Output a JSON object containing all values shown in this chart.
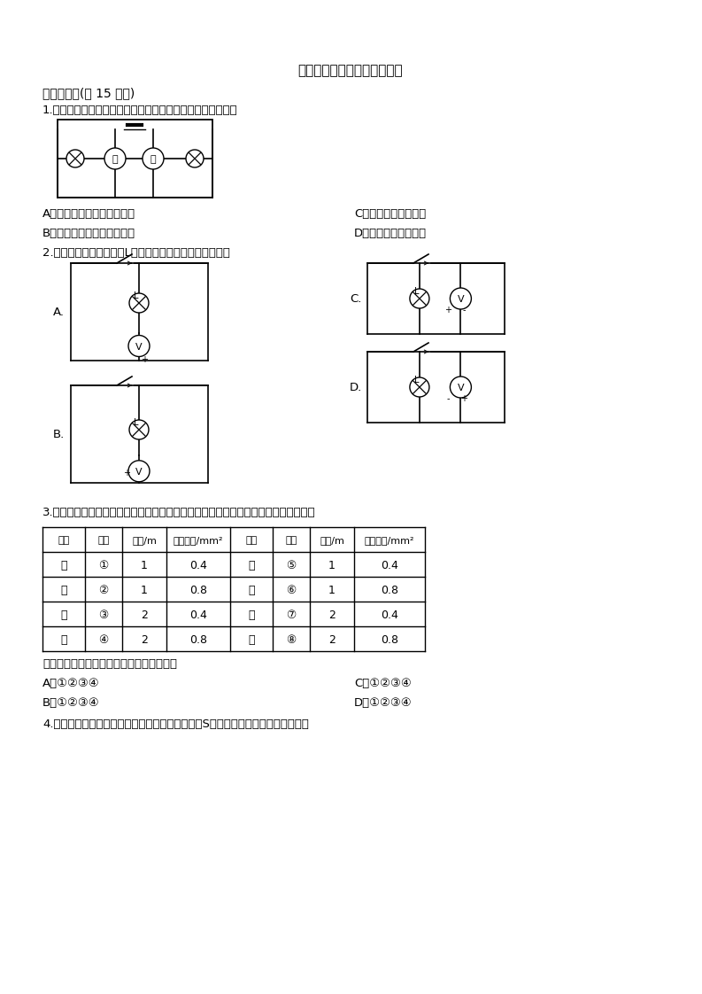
{
  "title": "第十六章《电压电阻》测试卷",
  "background_color": "#ffffff",
  "section1": "一、单选题(供 15 小题)",
  "q1": "1.图中各电路元件的连接均正确，甲、乙为两个电表，则（）",
  "q1_options_left": [
    "A．甲为电流表，乙为电压表",
    "B．甲为电压表，乙为电流表"
  ],
  "q1_options_right": [
    "C．甲、乙都为电流表",
    "D．甲、乙都为电压表"
  ],
  "q2": "2.图中要用电压表测量灯L两端的电压，正确的接法是（）",
  "q3_text": "3.用实验研究导体的材料、长度、横截面积对电阻的影响时，供选择的导线规格如表：",
  "table_headers": [
    "材料",
    "编号",
    "长度/m",
    "横截面积/mm²",
    "材料",
    "编号",
    "长度/m",
    "横截面积/mm²"
  ],
  "table_rows_left": [
    [
      "镍",
      "①",
      "1",
      "0.4"
    ],
    [
      "铬",
      "②",
      "1",
      "0.8"
    ],
    [
      "合",
      "③",
      "2",
      "0.4"
    ],
    [
      "金",
      "④",
      "2",
      "0.8"
    ]
  ],
  "table_rows_right": [
    [
      "锰",
      "⑤",
      "1",
      "0.4"
    ],
    [
      "铜",
      "⑥",
      "1",
      "0.8"
    ],
    [
      "合",
      "⑦",
      "2",
      "0.4"
    ],
    [
      "金",
      "⑧",
      "2",
      "0.8"
    ]
  ],
  "q3_sub": "你认为下面对导体选择最合理的一组是（）",
  "q3_A": "A．①②③④",
  "q3_B": "B．①②③④",
  "q3_C": "C．①②③④",
  "q3_D": "D．①②③④",
  "q4": "4.如图所示的电路中，甲、乙是两只电表．当开关S闭合后，要使两灯串联，则（）"
}
